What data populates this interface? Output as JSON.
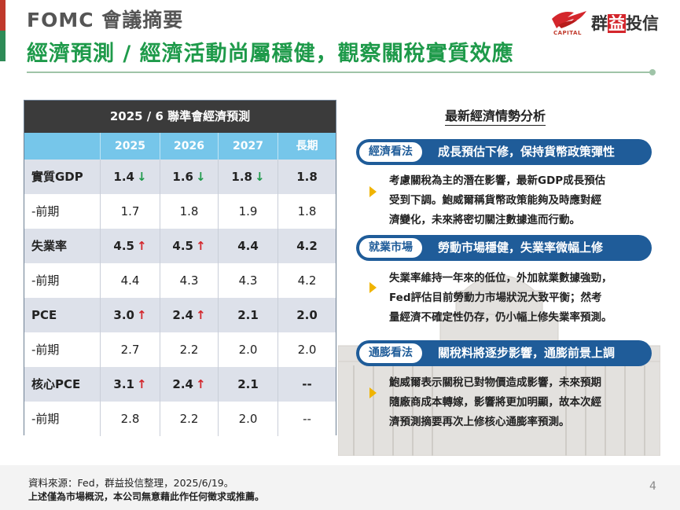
{
  "header": {
    "title": "FOMC 會議摘要",
    "subtitle": "經濟預測 / 經濟活動尚屬穩健，觀察關稅實質效應",
    "logo_caption": "CAPITAL",
    "logo_name_pre": "群",
    "logo_name_hl": "益",
    "logo_name_post": "投信"
  },
  "table": {
    "title": "2025 / 6 聯準會經濟預測",
    "columns": [
      "",
      "2025",
      "2026",
      "2027",
      "長期"
    ],
    "rows": [
      {
        "label": "實質GDP",
        "values": [
          "1.4",
          "1.6",
          "1.8",
          "1.8"
        ],
        "arrows": [
          "down",
          "down",
          "down",
          ""
        ],
        "shade": true
      },
      {
        "label": "-前期",
        "values": [
          "1.7",
          "1.8",
          "1.9",
          "1.8"
        ],
        "arrows": [
          "",
          "",
          "",
          ""
        ],
        "shade": false
      },
      {
        "label": "失業率",
        "values": [
          "4.5",
          "4.5",
          "4.4",
          "4.2"
        ],
        "arrows": [
          "up",
          "up",
          "",
          ""
        ],
        "shade": true
      },
      {
        "label": "-前期",
        "values": [
          "4.4",
          "4.3",
          "4.3",
          "4.2"
        ],
        "arrows": [
          "",
          "",
          "",
          ""
        ],
        "shade": false
      },
      {
        "label": "PCE",
        "values": [
          "3.0",
          "2.4",
          "2.1",
          "2.0"
        ],
        "arrows": [
          "up",
          "up",
          "",
          ""
        ],
        "shade": true
      },
      {
        "label": "-前期",
        "values": [
          "2.7",
          "2.2",
          "2.0",
          "2.0"
        ],
        "arrows": [
          "",
          "",
          "",
          ""
        ],
        "shade": false
      },
      {
        "label": "核心PCE",
        "values": [
          "3.1",
          "2.4",
          "2.1",
          "--"
        ],
        "arrows": [
          "up",
          "up",
          "",
          ""
        ],
        "shade": true
      },
      {
        "label": "-前期",
        "values": [
          "2.8",
          "2.2",
          "2.0",
          "--"
        ],
        "arrows": [
          "",
          "",
          "",
          ""
        ],
        "shade": false
      }
    ]
  },
  "analysis": {
    "title": "最新經濟情勢分析",
    "sections": [
      {
        "tag": "經濟看法",
        "headline": "成長預估下修，保持貨幣政策彈性",
        "lines": [
          "考慮關稅為主的潛在影響，最新GDP成長預估",
          "受到下調。鮑威爾稱貨幣政策能夠及時應對經",
          "濟變化，未來將密切關注數據進而行動。"
        ]
      },
      {
        "tag": "就業市場",
        "headline": "勞動市場穩健，失業率微幅上修",
        "lines": [
          "失業率維持一年來的低位，外加就業數據強勁，",
          "Fed評估目前勞動力市場狀況大致平衡；然考",
          "量經濟不確定性仍存，仍小幅上修失業率預測。"
        ]
      },
      {
        "tag": "通膨看法",
        "headline": "關稅料將逐步影響，通膨前景上調",
        "lines": [
          "鮑威爾表示關稅已對物價造成影響，未來預期",
          "隨廠商成本轉嫁，影響將更加明顯，故本次經",
          "濟預測摘要再次上修核心通膨率預測。"
        ]
      }
    ]
  },
  "footer": {
    "source": "資料來源：Fed，群益投信整理，2025/6/19。",
    "disclaimer": "上述僅為市場概況，本公司無意藉此作任何徵求或推薦。",
    "page": "4"
  },
  "colors": {
    "accent_green": "#1e9a4a",
    "accent_red": "#d4262c",
    "pill_blue": "#1f5c99",
    "header_blue": "#76c6ea"
  }
}
